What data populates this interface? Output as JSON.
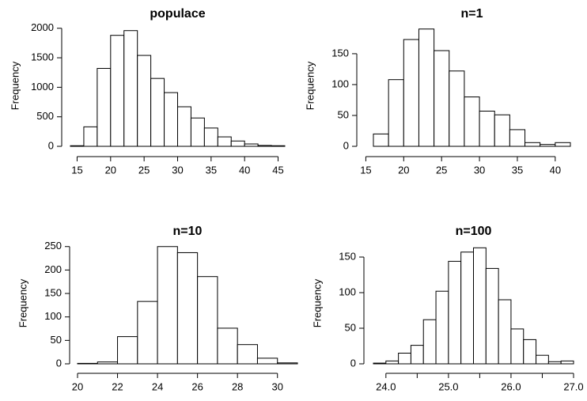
{
  "chart_data": [
    {
      "type": "histogram",
      "title": "populace",
      "ylabel": "Frequency",
      "bins": [
        14,
        16,
        18,
        20,
        22,
        24,
        26,
        28,
        30,
        32,
        34,
        36,
        38,
        40,
        42,
        44,
        46
      ],
      "values": [
        10,
        330,
        1320,
        1880,
        1960,
        1540,
        1150,
        910,
        670,
        480,
        310,
        160,
        90,
        40,
        15,
        10
      ],
      "xlim": [
        14,
        46
      ],
      "xticks": [
        15,
        20,
        25,
        30,
        35,
        40,
        45
      ],
      "ylim": [
        0,
        2050
      ],
      "yticks": [
        0,
        500,
        1000,
        1500,
        2000
      ],
      "color": "#ffffff"
    },
    {
      "type": "histogram",
      "title": "n=1",
      "ylabel": "Frequency",
      "bins": [
        16,
        18,
        20,
        22,
        24,
        26,
        28,
        30,
        32,
        34,
        36,
        38,
        40,
        42
      ],
      "values": [
        20,
        108,
        173,
        190,
        155,
        122,
        80,
        57,
        51,
        27,
        6,
        3,
        6
      ],
      "xlim": [
        16,
        42
      ],
      "xticks": [
        15,
        20,
        25,
        30,
        35,
        40
      ],
      "ylim": [
        0,
        196
      ],
      "yticks": [
        0,
        50,
        100,
        150
      ],
      "color": "#ffffff"
    },
    {
      "type": "histogram",
      "title": "n=10",
      "ylabel": "Frequency",
      "bins": [
        20,
        21,
        22,
        23,
        24,
        25,
        26,
        27,
        28,
        29,
        30,
        31
      ],
      "values": [
        1,
        4,
        58,
        133,
        250,
        237,
        186,
        76,
        41,
        12,
        2
      ],
      "xlim": [
        20,
        31
      ],
      "xticks": [
        20,
        22,
        24,
        26,
        28,
        30
      ],
      "ylim": [
        0,
        258
      ],
      "yticks": [
        0,
        50,
        100,
        150,
        200,
        250
      ],
      "color": "#ffffff"
    },
    {
      "type": "histogram",
      "title": "n=100",
      "ylabel": "Frequency",
      "bins": [
        23.8,
        24.0,
        24.2,
        24.4,
        24.6,
        24.8,
        25.0,
        25.2,
        25.4,
        25.6,
        25.8,
        26.0,
        26.2,
        26.4,
        26.6,
        26.8,
        27.0
      ],
      "values": [
        1,
        4,
        15,
        26,
        62,
        102,
        144,
        157,
        163,
        134,
        90,
        49,
        34,
        12,
        3,
        4
      ],
      "xlim": [
        23.8,
        27.0
      ],
      "xticks": [
        {
          "value": 24,
          "label": "24.0"
        },
        24.5,
        {
          "value": 25,
          "label": "25.0"
        },
        25.5,
        {
          "value": 26,
          "label": "26.0"
        },
        26.5,
        {
          "value": 27,
          "label": "27.0"
        }
      ],
      "ylim": [
        0,
        170
      ],
      "yticks": [
        0,
        50,
        100,
        150
      ],
      "color": "#ffffff"
    }
  ]
}
